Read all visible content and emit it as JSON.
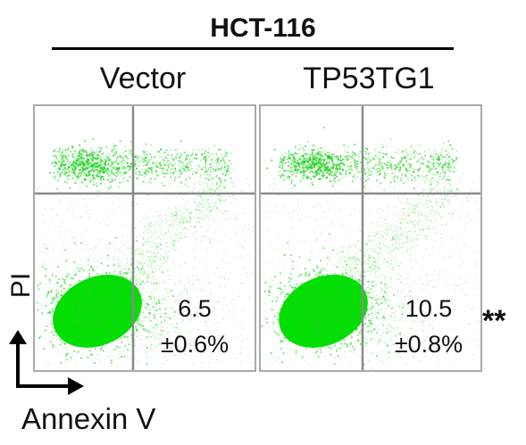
{
  "chart_data": {
    "type": "scatter",
    "title": "HCT-116",
    "xlabel": "Annexin V",
    "ylabel": "PI",
    "panels": [
      {
        "name": "Vector",
        "apoptosis_percent": "6.5",
        "error": "±0.6%"
      },
      {
        "name": "TP53TG1",
        "apoptosis_percent": "10.5",
        "error": "±0.8%"
      }
    ],
    "significance": "**",
    "grid": true
  },
  "colors": {
    "points": "#1ed11e",
    "dense": "#00e000",
    "gate": "#8a8a8a",
    "border": "#aaaaaa"
  }
}
